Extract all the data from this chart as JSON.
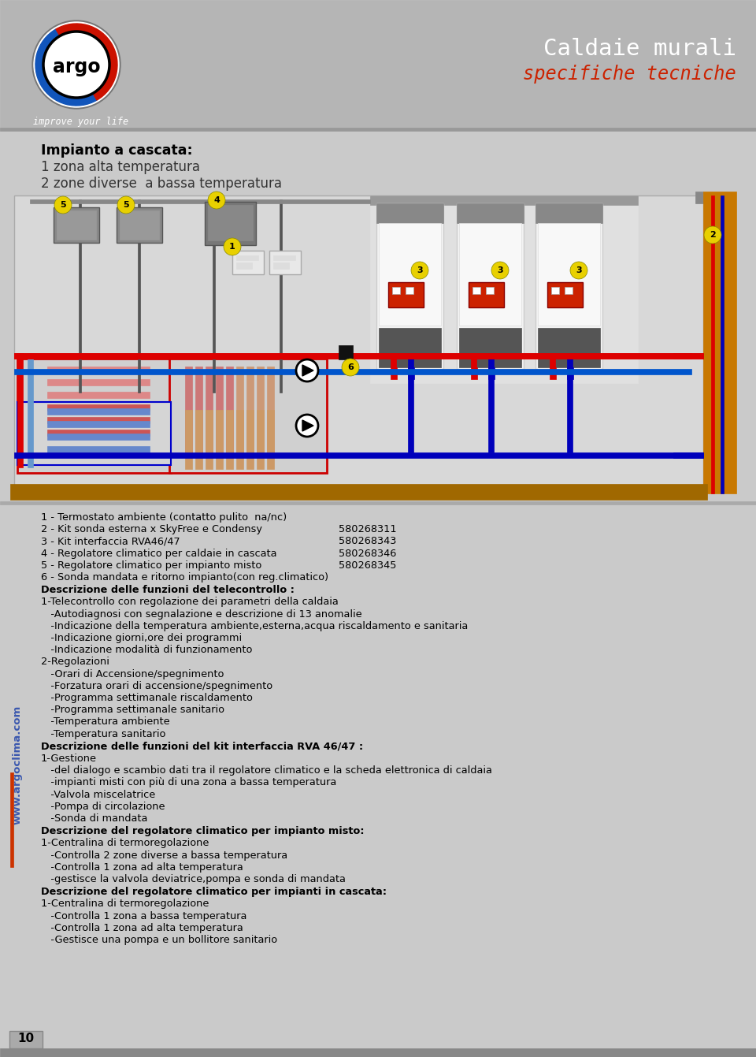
{
  "bg_color": "#cacaca",
  "header_bg": "#b5b5b5",
  "title_line1": "Caldaie murali",
  "title_line2": "specifiche tecniche",
  "title_color1": "#ffffff",
  "title_color2": "#cc2200",
  "subtitle_bold": "Impianto a cascata:",
  "subtitle_lines": [
    "1 zona alta temperatura",
    "2 zone diverse  a bassa temperatura"
  ],
  "numbering": [
    {
      "num": "1",
      "text": " - Termostato ambiente (contatto pulito  na/nc)",
      "code": ""
    },
    {
      "num": "2",
      "text": " - Kit sonda esterna x SkyFree e Condensy",
      "code": "580268311"
    },
    {
      "num": "3",
      "text": " - Kit interfaccia RVA46/47",
      "code": "580268343"
    },
    {
      "num": "4",
      "text": " - Regolatore climatico per caldaie in cascata",
      "code": "580268346"
    },
    {
      "num": "5",
      "text": " - Regolatore climatico per impianto misto",
      "code": "580268345"
    },
    {
      "num": "6",
      "text": " - Sonda mandata e ritorno impianto(con reg.climatico)",
      "code": ""
    }
  ],
  "desc_sections": [
    {
      "heading": "Descrizione delle funzioni del telecontrollo :",
      "items": [
        "1-Telecontrollo con regolazione dei parametri della caldaia",
        "   -Autodiagnosi con segnalazione e descrizione di 13 anomalie",
        "   -Indicazione della temperatura ambiente,esterna,acqua riscaldamento e sanitaria",
        "   -Indicazione giorni,ore dei programmi",
        "   -Indicazione modalità di funzionamento",
        "2-Regolazioni",
        "   -Orari di Accensione/spegnimento",
        "   -Forzatura orari di accensione/spegnimento",
        "   -Programma settimanale riscaldamento",
        "   -Programma settimanale sanitario",
        "   -Temperatura ambiente",
        "   -Temperatura sanitario"
      ]
    },
    {
      "heading": "Descrizione delle funzioni del kit interfaccia RVA 46/47 :",
      "items": [
        "1-Gestione",
        "   -del dialogo e scambio dati tra il regolatore climatico e la scheda elettronica di caldaia",
        "   -impianti misti con più di una zona a bassa temperatura",
        "   -Valvola miscelatrice",
        "   -Pompa di circolazione",
        "   -Sonda di mandata"
      ]
    },
    {
      "heading": "Descrizione del regolatore climatico per impianto misto:",
      "items": [
        "1-Centralina di termoregolazione",
        "   -Controlla 2 zone diverse a bassa temperatura",
        "   -Controlla 1 zona ad alta temperatura",
        "   -gestisce la valvola deviatrice,pompa e sonda di mandata"
      ]
    },
    {
      "heading": "Descrizione del regolatore climatico per impianti in cascata:",
      "items": [
        "1-Centralina di termoregolazione",
        "   -Controlla 1 zona a bassa temperatura",
        "   -Controlla 1 zona ad alta temperatura",
        "   -Gestisce una pompa e un bollitore sanitario"
      ]
    }
  ],
  "watermark": "www.argoclima.com",
  "page_num": "10",
  "orange_bar_color": "#c87800",
  "red_pipe_color": "#dd0000",
  "blue_pipe_color": "#0000bb",
  "label_yellow": "#e8d000",
  "footer_bar_color": "#a06800"
}
